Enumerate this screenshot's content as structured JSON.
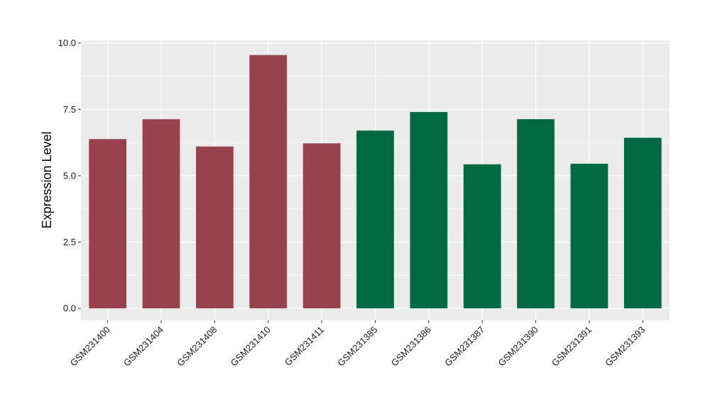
{
  "chart_data": {
    "type": "bar",
    "title": "",
    "xlabel": "",
    "ylabel": "Expression Level",
    "ylim": [
      -0.45,
      10.1
    ],
    "yticks": [
      0.0,
      2.5,
      5.0,
      7.5,
      10.0
    ],
    "ytick_labels": [
      "0.0",
      "2.5",
      "5.0",
      "7.5",
      "10.0"
    ],
    "categories": [
      "GSM231400",
      "GSM231404",
      "GSM231408",
      "GSM231410",
      "GSM231411",
      "GSM231385",
      "GSM231386",
      "GSM231387",
      "GSM231390",
      "GSM231391",
      "GSM231393"
    ],
    "values": [
      6.38,
      7.13,
      6.1,
      9.55,
      6.22,
      6.7,
      7.4,
      5.43,
      7.13,
      5.45,
      6.43
    ],
    "bar_colors": [
      "#99424f",
      "#99424f",
      "#99424f",
      "#99424f",
      "#99424f",
      "#006843",
      "#006843",
      "#006843",
      "#006843",
      "#006843",
      "#006843"
    ],
    "grid": true,
    "panel_background": "#ebebeb",
    "grid_color": "#ffffff",
    "legend": "none"
  }
}
